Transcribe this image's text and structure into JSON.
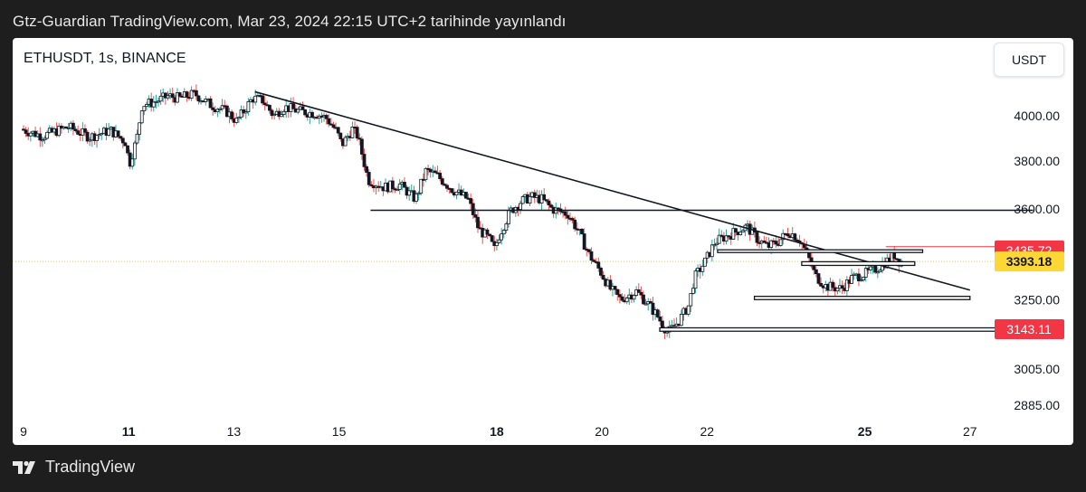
{
  "header": {
    "publish_line": "Gtz-Guardian TradingView.com, Mar 23, 2024 22:15 UTC+2 tarihinde yayınlandı"
  },
  "chart_header": {
    "symbol": "ETHUSDT, 1s, BINANCE",
    "currency_button": "USDT"
  },
  "footer": {
    "brand": "TradingView"
  },
  "colors": {
    "up": "#26a69a",
    "down": "#ef5350",
    "candle_body": "#131722",
    "price_red": "#f23645",
    "price_yellow": "#fdd835",
    "panel": "#ffffff",
    "page": "#1e1e1e"
  },
  "chart_data": {
    "type": "candlestick",
    "title": "ETHUSDT, 1s, BINANCE",
    "x_tick_labels": [
      {
        "label": "9",
        "day": 9,
        "bold": false
      },
      {
        "label": "11",
        "day": 11,
        "bold": true
      },
      {
        "label": "13",
        "day": 13,
        "bold": false
      },
      {
        "label": "15",
        "day": 15,
        "bold": false
      },
      {
        "label": "18",
        "day": 18,
        "bold": true
      },
      {
        "label": "20",
        "day": 20,
        "bold": false
      },
      {
        "label": "22",
        "day": 22,
        "bold": false
      },
      {
        "label": "25",
        "day": 25,
        "bold": true
      },
      {
        "label": "27",
        "day": 27,
        "bold": false
      }
    ],
    "y_tick_labels": [
      "4000.00",
      "3800.00",
      "3600.00",
      "3250.00",
      "3005.00",
      "2885.00"
    ],
    "y_ticks": [
      4000,
      3800,
      3600,
      3250,
      3005,
      2885
    ],
    "y_scale": "log",
    "price_labels": [
      {
        "value": 3435.72,
        "label": "3435.72",
        "style": "red-outline"
      },
      {
        "value": 3393.18,
        "label": "3393.18",
        "style": "yellow"
      },
      {
        "value": 3143.11,
        "label": "3143.11",
        "style": "red"
      }
    ],
    "current_price": 3393.18,
    "price_path": [
      [
        9.0,
        3940
      ],
      [
        9.4,
        3910
      ],
      [
        9.9,
        3950
      ],
      [
        10.3,
        3905
      ],
      [
        10.7,
        3935
      ],
      [
        11.0,
        3880
      ],
      [
        11.05,
        3780
      ],
      [
        11.2,
        3900
      ],
      [
        11.3,
        4050
      ],
      [
        11.5,
        4060
      ],
      [
        11.8,
        4090
      ],
      [
        12.0,
        4080
      ],
      [
        12.3,
        4100
      ],
      [
        12.6,
        4050
      ],
      [
        12.9,
        4020
      ],
      [
        13.1,
        3975
      ],
      [
        13.4,
        4080
      ],
      [
        13.6,
        4070
      ],
      [
        13.8,
        4000
      ],
      [
        14.0,
        4040
      ],
      [
        14.3,
        4020
      ],
      [
        14.6,
        4010
      ],
      [
        14.8,
        3990
      ],
      [
        15.0,
        3930
      ],
      [
        15.1,
        3870
      ],
      [
        15.3,
        3940
      ],
      [
        15.4,
        3910
      ],
      [
        15.6,
        3720
      ],
      [
        15.9,
        3690
      ],
      [
        16.2,
        3700
      ],
      [
        16.5,
        3640
      ],
      [
        16.7,
        3760
      ],
      [
        16.9,
        3740
      ],
      [
        17.2,
        3680
      ],
      [
        17.5,
        3640
      ],
      [
        17.7,
        3520
      ],
      [
        17.9,
        3480
      ],
      [
        18.0,
        3440
      ],
      [
        18.1,
        3500
      ],
      [
        18.3,
        3590
      ],
      [
        18.5,
        3630
      ],
      [
        18.7,
        3650
      ],
      [
        18.9,
        3640
      ],
      [
        19.1,
        3600
      ],
      [
        19.4,
        3580
      ],
      [
        19.6,
        3510
      ],
      [
        19.8,
        3420
      ],
      [
        20.0,
        3360
      ],
      [
        20.2,
        3290
      ],
      [
        20.4,
        3250
      ],
      [
        20.7,
        3280
      ],
      [
        20.9,
        3240
      ],
      [
        21.1,
        3190
      ],
      [
        21.3,
        3130
      ],
      [
        21.5,
        3170
      ],
      [
        21.7,
        3230
      ],
      [
        21.8,
        3330
      ],
      [
        22.0,
        3390
      ],
      [
        22.2,
        3470
      ],
      [
        22.5,
        3500
      ],
      [
        22.8,
        3530
      ],
      [
        23.0,
        3480
      ],
      [
        23.2,
        3450
      ],
      [
        23.4,
        3470
      ],
      [
        23.6,
        3510
      ],
      [
        23.8,
        3480
      ],
      [
        23.95,
        3420
      ],
      [
        24.1,
        3340
      ],
      [
        24.3,
        3300
      ],
      [
        24.6,
        3290
      ],
      [
        24.8,
        3330
      ],
      [
        25.1,
        3350
      ],
      [
        25.3,
        3370
      ],
      [
        25.5,
        3400
      ],
      [
        25.6,
        3420
      ],
      [
        25.7,
        3393
      ]
    ],
    "drawings": [
      {
        "type": "trendline",
        "from": [
          13.4,
          4110
        ],
        "to": [
          27.0,
          3285
        ]
      },
      {
        "type": "hline",
        "from": [
          15.6,
          3595
        ],
        "to": [
          28.2,
          3595
        ]
      },
      {
        "type": "rect",
        "from": [
          22.2,
          3438
        ],
        "to": [
          26.1,
          3428
        ]
      },
      {
        "type": "rect",
        "from": [
          23.8,
          3392
        ],
        "to": [
          25.95,
          3378
        ]
      },
      {
        "type": "rect",
        "from": [
          22.9,
          3262
        ],
        "to": [
          27.0,
          3250
        ]
      },
      {
        "type": "rect",
        "from": [
          21.1,
          3148
        ],
        "to": [
          28.0,
          3136
        ]
      },
      {
        "type": "hline-red",
        "from": [
          25.4,
          3450
        ],
        "to": [
          28.2,
          3450
        ]
      }
    ]
  }
}
